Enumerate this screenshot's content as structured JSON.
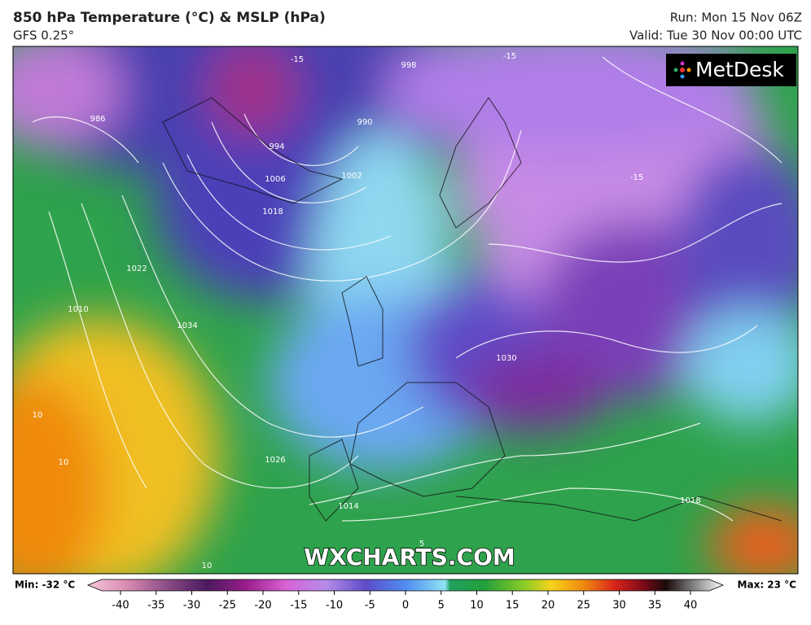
{
  "header": {
    "title": "850 hPa Temperature (°C) & MSLP (hPa)",
    "model": "GFS 0.25°",
    "run": "Run: Mon 15 Nov 06Z",
    "valid": "Valid: Tue 30 Nov 00:00 UTC"
  },
  "logo": "MetDesk",
  "watermark": "WXCHARTS.COM",
  "map_labels": [
    "986",
    "994",
    "1002",
    "1018",
    "1006",
    "990",
    "998",
    "1022",
    "1010",
    "1034",
    "1026",
    "1014",
    "1030",
    "1018",
    "-15",
    "-15",
    "-15",
    "10",
    "10",
    "5",
    "10"
  ],
  "colorbar": {
    "min_label": "Min: -32 °C",
    "max_label": "Max: 23 °C",
    "range": [
      -40,
      40
    ],
    "ticks": [
      -40,
      -35,
      -30,
      -25,
      -20,
      -15,
      -10,
      -5,
      0,
      5,
      10,
      15,
      20,
      25,
      30,
      35,
      40
    ]
  }
}
